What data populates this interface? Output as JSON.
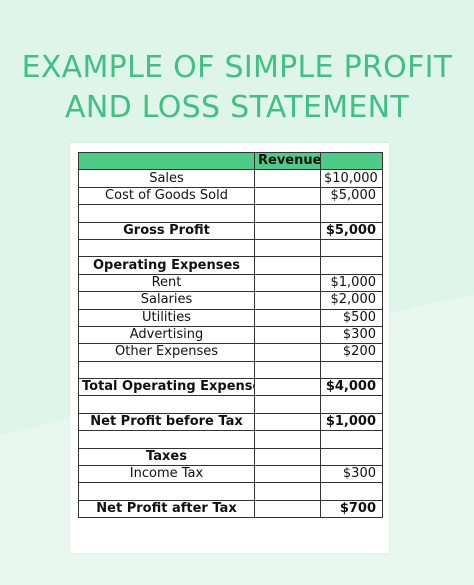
{
  "title": {
    "line1": "EXAMPLE OF SIMPLE PROFIT",
    "line2": "AND LOSS STATEMENT"
  },
  "colors": {
    "background": "#dff5ea",
    "title": "#3fc184",
    "header_fill": "#4ecb86",
    "sheet": "#ffffff"
  },
  "table": {
    "header": {
      "label": "",
      "col2": "Revenue",
      "col3": ""
    },
    "rows": [
      {
        "label": "Sales",
        "value": "$10,000",
        "bold": false
      },
      {
        "label": "Cost of Goods Sold",
        "value": "$5,000",
        "bold": false
      },
      {
        "label": "",
        "value": "",
        "bold": false
      },
      {
        "label": "Gross Profit",
        "value": "$5,000",
        "bold": true
      },
      {
        "label": "",
        "value": "",
        "bold": false
      },
      {
        "label": "Operating Expenses",
        "value": "",
        "bold": true
      },
      {
        "label": "Rent",
        "value": "$1,000",
        "bold": false
      },
      {
        "label": "Salaries",
        "value": "$2,000",
        "bold": false
      },
      {
        "label": "Utilities",
        "value": "$500",
        "bold": false
      },
      {
        "label": "Advertising",
        "value": "$300",
        "bold": false
      },
      {
        "label": "Other Expenses",
        "value": "$200",
        "bold": false
      },
      {
        "label": "",
        "value": "",
        "bold": false
      },
      {
        "label": "Total Operating Expenses",
        "value": "$4,000",
        "bold": true
      },
      {
        "label": "",
        "value": "",
        "bold": false
      },
      {
        "label": "Net Profit before Tax",
        "value": "$1,000",
        "bold": true
      },
      {
        "label": "",
        "value": "",
        "bold": false
      },
      {
        "label": "Taxes",
        "value": "",
        "bold": true
      },
      {
        "label": "Income Tax",
        "value": "$300",
        "bold": false
      },
      {
        "label": "",
        "value": "",
        "bold": false
      },
      {
        "label": "Net Profit after Tax",
        "value": "$700",
        "bold": true
      }
    ]
  }
}
